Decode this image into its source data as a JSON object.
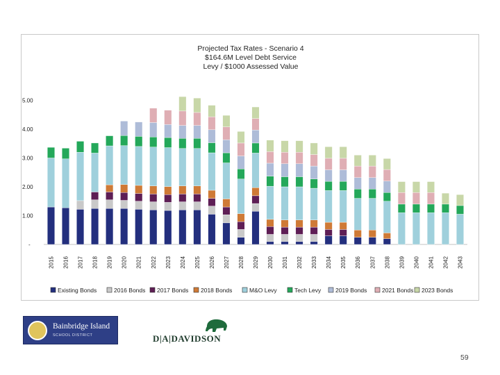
{
  "slide": {
    "page_number": "59"
  },
  "logos": {
    "bainbridge_line1": "Bainbridge Island",
    "bainbridge_line2": "SCHOOL DISTRICT",
    "davidson": "D|A|DAVIDSON"
  },
  "colors": {
    "Existing Bonds": "#232f7e",
    "2016 Bonds": "#c9c9c9",
    "2017 Bonds": "#5e1e55",
    "2018 Bonds": "#cf7a36",
    "M&O Levy": "#9fd0dc",
    "Tech Levy": "#24a85a",
    "2019 Bonds": "#aebcd8",
    "2021 Bonds": "#dfaeb4",
    "2023 Bonds": "#c8d7a8"
  },
  "chart_data": {
    "type": "bar",
    "stacked": true,
    "title": [
      "Projected Tax Rates - Scenario 4",
      "$164.6M Level Debt Service",
      "Levy / $1000 Assessed Value"
    ],
    "ylim": [
      0,
      5
    ],
    "yticks": [
      "-",
      "1.00",
      "2.00",
      "3.00",
      "4.00",
      "5.00"
    ],
    "grid": false,
    "legend": "bottom",
    "categories": [
      "2015",
      "2016",
      "2017",
      "2018",
      "2019",
      "2020",
      "2021",
      "2022",
      "2023",
      "2024",
      "2025",
      "2026",
      "2027",
      "2028",
      "2029",
      "2030",
      "2031",
      "2032",
      "2033",
      "2034",
      "2035",
      "2036",
      "2037",
      "2038",
      "2039",
      "2040",
      "2041",
      "2042",
      "2043"
    ],
    "series": [
      {
        "name": "Existing Bonds",
        "values": [
          1.3,
          1.27,
          1.22,
          1.25,
          1.25,
          1.25,
          1.22,
          1.2,
          1.18,
          1.2,
          1.2,
          1.05,
          0.75,
          0.25,
          1.15,
          0.1,
          0.1,
          0.1,
          0.1,
          0.3,
          0.3,
          0.25,
          0.25,
          0.2,
          0,
          0,
          0,
          0,
          0
        ]
      },
      {
        "name": "2016 Bonds",
        "values": [
          0,
          0,
          0.3,
          0.3,
          0.3,
          0.28,
          0.28,
          0.28,
          0.28,
          0.28,
          0.28,
          0.28,
          0.28,
          0.27,
          0.27,
          0.25,
          0.25,
          0.25,
          0.25,
          0,
          0,
          0,
          0,
          0,
          0,
          0,
          0,
          0,
          0
        ]
      },
      {
        "name": "2017 Bonds",
        "values": [
          0,
          0,
          0,
          0.27,
          0.27,
          0.27,
          0.27,
          0.27,
          0.27,
          0.27,
          0.27,
          0.27,
          0.27,
          0.27,
          0.27,
          0.27,
          0.25,
          0.25,
          0.25,
          0.22,
          0.22,
          0,
          0,
          0,
          0,
          0,
          0,
          0,
          0
        ]
      },
      {
        "name": "2018 Bonds",
        "values": [
          0,
          0,
          0,
          0,
          0.25,
          0.28,
          0.28,
          0.28,
          0.28,
          0.28,
          0.28,
          0.28,
          0.28,
          0.28,
          0.28,
          0.25,
          0.25,
          0.25,
          0.25,
          0.25,
          0.25,
          0.25,
          0.25,
          0.2,
          0,
          0,
          0,
          0,
          0
        ]
      },
      {
        "name": "M&O Levy",
        "values": [
          1.7,
          1.7,
          1.68,
          1.35,
          1.35,
          1.35,
          1.35,
          1.35,
          1.35,
          1.3,
          1.3,
          1.3,
          1.25,
          1.2,
          1.2,
          1.15,
          1.15,
          1.15,
          1.1,
          1.1,
          1.1,
          1.1,
          1.1,
          1.1,
          1.1,
          1.1,
          1.1,
          1.1,
          1.05
        ]
      },
      {
        "name": "Tech Levy",
        "values": [
          0.37,
          0.37,
          0.38,
          0.35,
          0.35,
          0.35,
          0.35,
          0.35,
          0.35,
          0.35,
          0.35,
          0.35,
          0.35,
          0.35,
          0.35,
          0.35,
          0.35,
          0.35,
          0.32,
          0.32,
          0.32,
          0.32,
          0.32,
          0.3,
          0.3,
          0.3,
          0.3,
          0.3,
          0.3
        ]
      },
      {
        "name": "2019 Bonds",
        "values": [
          0,
          0,
          0,
          0,
          0,
          0.5,
          0.5,
          0.5,
          0.45,
          0.45,
          0.45,
          0.45,
          0.45,
          0.45,
          0.45,
          0.45,
          0.45,
          0.45,
          0.45,
          0.4,
          0.4,
          0.4,
          0.4,
          0.4,
          0,
          0,
          0,
          0,
          0
        ]
      },
      {
        "name": "2021 Bonds",
        "values": [
          0,
          0,
          0,
          0,
          0,
          0,
          0,
          0.5,
          0.5,
          0.5,
          0.45,
          0.45,
          0.45,
          0.45,
          0.4,
          0.4,
          0.4,
          0.4,
          0.4,
          0.4,
          0.4,
          0.4,
          0.4,
          0.4,
          0.4,
          0.4,
          0.4,
          0,
          0
        ]
      },
      {
        "name": "2023 Bonds",
        "values": [
          0,
          0,
          0,
          0,
          0,
          0,
          0,
          0,
          0,
          0.5,
          0.5,
          0.4,
          0.4,
          0.4,
          0.4,
          0.4,
          0.4,
          0.4,
          0.4,
          0.4,
          0.4,
          0.38,
          0.38,
          0.38,
          0.38,
          0.38,
          0.38,
          0.38,
          0.38
        ]
      }
    ]
  }
}
